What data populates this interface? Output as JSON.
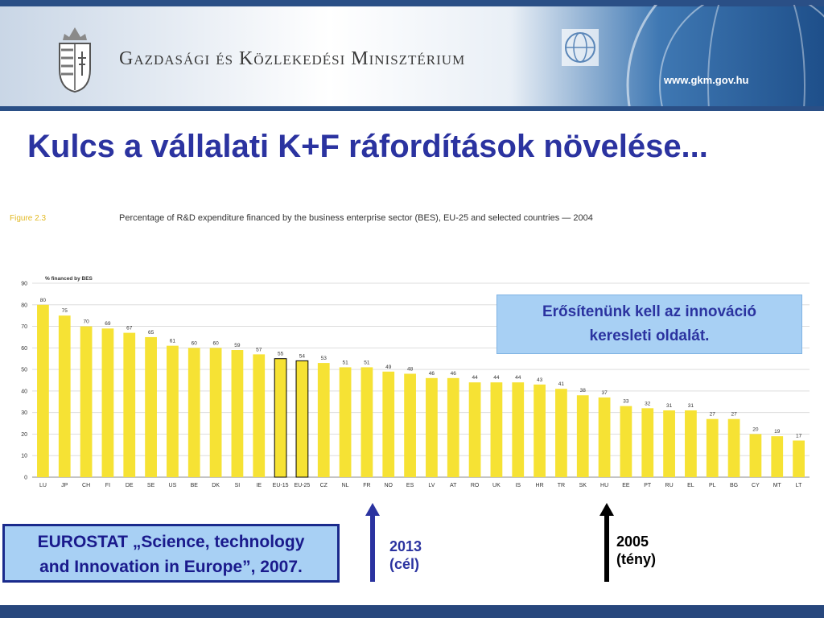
{
  "header": {
    "ministry_name": "Gazdasági és Közlekedési Minisztérium",
    "url": "www.gkm.gov.hu"
  },
  "title": "Kulcs a vállalati K+F ráfordítások növelése...",
  "figure": {
    "label": "Figure 2.3",
    "caption": "Percentage of R&D expenditure financed by the business enterprise sector (BES), EU-25 and selected countries — 2004"
  },
  "chart_data": {
    "type": "bar",
    "ylabel": "% financed by BES",
    "ylim": [
      0,
      90
    ],
    "yticks": [
      0,
      10,
      20,
      30,
      40,
      50,
      60,
      70,
      80,
      90
    ],
    "grid": true,
    "categories": [
      "LU",
      "JP",
      "CH",
      "FI",
      "DE",
      "SE",
      "US",
      "BE",
      "DK",
      "SI",
      "IE",
      "EU-15",
      "EU-25",
      "CZ",
      "NL",
      "FR",
      "NO",
      "ES",
      "LV",
      "AT",
      "RO",
      "UK",
      "IS",
      "HR",
      "TR",
      "SK",
      "HU",
      "EE",
      "PT",
      "RU",
      "EL",
      "PL",
      "BG",
      "CY",
      "MT",
      "LT"
    ],
    "values": [
      80,
      75,
      70,
      69,
      67,
      65,
      61,
      60,
      60,
      59,
      57,
      55,
      54,
      53,
      51,
      51,
      49,
      48,
      46,
      46,
      44,
      44,
      44,
      43,
      41,
      38,
      37,
      33,
      32,
      31,
      31,
      27,
      27,
      20,
      19,
      17
    ],
    "highlighted": [
      "EU-15",
      "EU-25"
    ],
    "bar_color": "#f6e234",
    "highlight_color": "#000000"
  },
  "callout": {
    "line1": "Erősítenünk kell az innováció",
    "line2": "keresleti oldalát."
  },
  "source": {
    "line1": "EUROSTAT „Science, technology",
    "line2": "and Innovation in Europe”, 2007."
  },
  "arrows": {
    "a2013": {
      "year": "2013",
      "note": "(cél)",
      "category": "FR",
      "color": "#2b33a0"
    },
    "a2005": {
      "year": "2005",
      "note": "(tény)",
      "category": "HU",
      "color": "#000000"
    }
  }
}
